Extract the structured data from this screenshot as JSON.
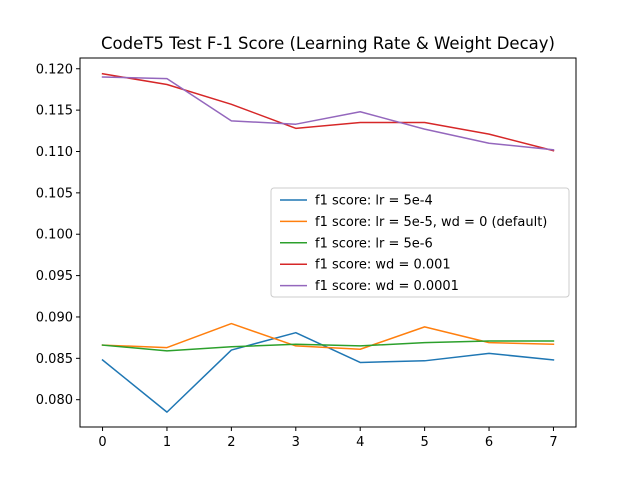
{
  "chart_data": {
    "type": "line",
    "title": "CodeT5 Test F-1 Score (Learning Rate & Weight Decay)",
    "xlabel": "",
    "ylabel": "",
    "x": [
      0,
      1,
      2,
      3,
      4,
      5,
      6,
      7
    ],
    "xlim": [
      -0.35,
      7.35
    ],
    "ylim": [
      0.0767,
      0.1213
    ],
    "xticks": [
      "0",
      "1",
      "2",
      "3",
      "4",
      "5",
      "6",
      "7"
    ],
    "yticks": [
      "0.080",
      "0.085",
      "0.090",
      "0.095",
      "0.100",
      "0.105",
      "0.110",
      "0.115",
      "0.120"
    ],
    "grid": false,
    "legend_position": "center-right",
    "series": [
      {
        "name": "f1 score: lr = 5e-4",
        "color": "#1f77b4",
        "values": [
          0.0848,
          0.0785,
          0.086,
          0.0881,
          0.0845,
          0.0847,
          0.0856,
          0.0848
        ]
      },
      {
        "name": "f1 score: lr = 5e-5, wd = 0 (default)",
        "color": "#ff7f0e",
        "values": [
          0.0866,
          0.0863,
          0.0892,
          0.0865,
          0.0861,
          0.0888,
          0.0869,
          0.0867
        ]
      },
      {
        "name": "f1 score: lr = 5e-6",
        "color": "#2ca02c",
        "values": [
          0.0866,
          0.0859,
          0.0864,
          0.0867,
          0.0865,
          0.0869,
          0.0871,
          0.0871
        ]
      },
      {
        "name": "f1 score: wd = 0.001",
        "color": "#d62728",
        "values": [
          0.1194,
          0.1181,
          0.1157,
          0.1128,
          0.1135,
          0.1135,
          0.1121,
          0.1101
        ]
      },
      {
        "name": "f1 score: wd = 0.0001",
        "color": "#9467bd",
        "values": [
          0.119,
          0.1188,
          0.1137,
          0.1133,
          0.1148,
          0.1127,
          0.111,
          0.1102
        ]
      }
    ]
  }
}
